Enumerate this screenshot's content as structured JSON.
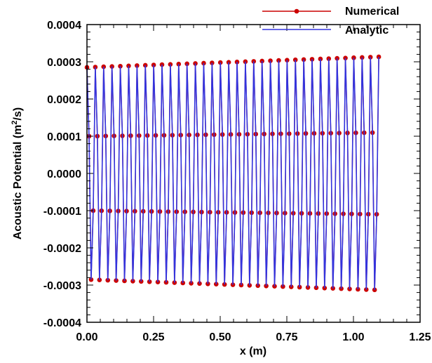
{
  "chart_data": {
    "type": "line",
    "title": "",
    "xlabel": "x (m)",
    "ylabel_main": "Acoustic Potential (m",
    "ylabel_sup": "2",
    "ylabel_end": "/s)",
    "xlim": [
      0,
      1.25
    ],
    "ylim": [
      -0.0004,
      0.0004
    ],
    "xticks": [
      0,
      0.25,
      0.5,
      0.75,
      1.0,
      1.25
    ],
    "yticks": [
      -0.0004,
      -0.0003,
      -0.0002,
      -0.0001,
      0,
      0.0001,
      0.0002,
      0.0003,
      0.0004
    ],
    "xtick_labels": [
      "0.00",
      "0.25",
      "0.50",
      "0.75",
      "1.00",
      "1.25"
    ],
    "ytick_labels": [
      "-0.0004",
      "-0.0003",
      "-0.0002",
      "-0.0001",
      "0.0000",
      "0.0001",
      "0.0002",
      "0.0003",
      "0.0004"
    ],
    "grid": false,
    "legend_position": "top-right",
    "signal": {
      "x_start": 0,
      "x_end": 1.095,
      "periods": 35,
      "amplitude_start": 0.000302,
      "amplitude_end": 0.000332,
      "initial_value": 0.000285,
      "samples_per_period": 4
    },
    "series": [
      {
        "name": "Numerical",
        "color": "#cc0000",
        "style": "line-with-circle-markers"
      },
      {
        "name": "Analytic",
        "color": "#3333dd",
        "style": "line"
      }
    ]
  }
}
